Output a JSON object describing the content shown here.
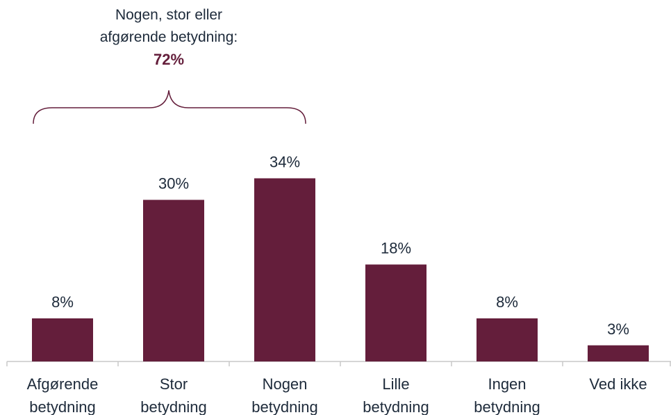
{
  "chart_data": {
    "type": "bar",
    "categories": [
      "Afgørende betydning",
      "Stor betydning",
      "Nogen betydning",
      "Lille betydning",
      "Ingen betydning",
      "Ved ikke"
    ],
    "values": [
      8,
      30,
      34,
      18,
      8,
      3
    ],
    "value_labels": [
      "8%",
      "30%",
      "34%",
      "18%",
      "8%",
      "3%"
    ],
    "color": "#641e3b",
    "annotation": {
      "text": "Nogen, stor eller afgørende betydning:",
      "value": 72,
      "label": "72%"
    }
  }
}
